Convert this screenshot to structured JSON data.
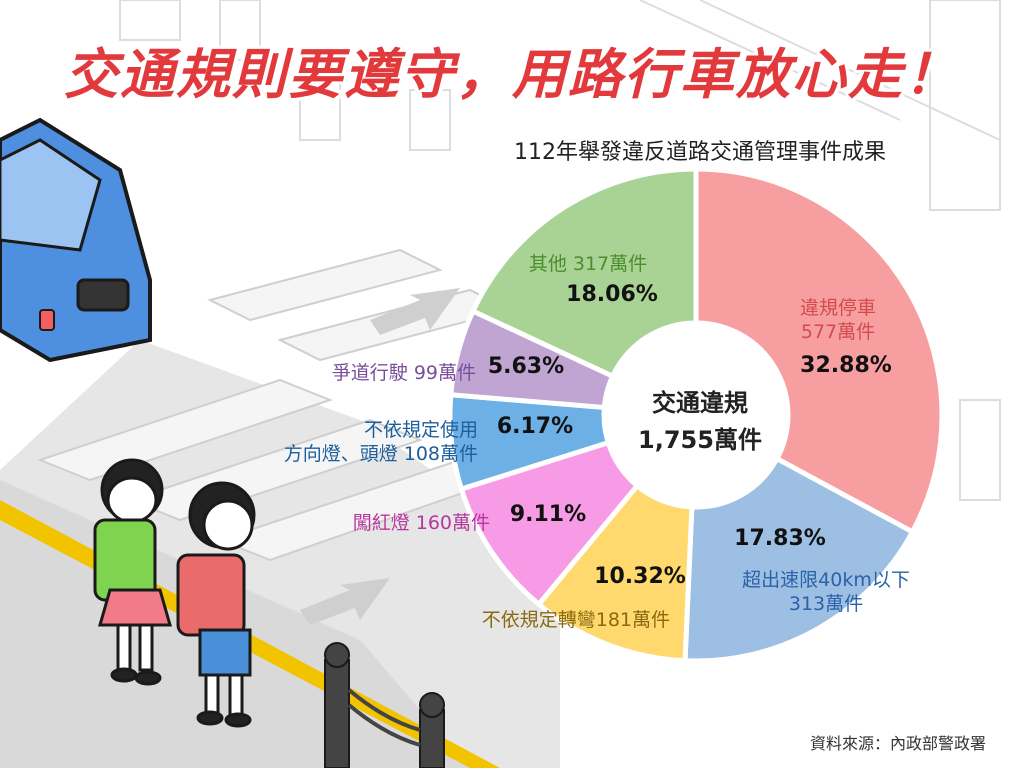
{
  "headline": "交通規則要遵守，用路行車放心走！",
  "source": "資料來源：內政部警政署",
  "colors": {
    "headline": "#e23a3c",
    "donut_hole": "#ffffff"
  },
  "chart_data": {
    "type": "pie",
    "title": "112年舉發違反道路交通管理事件成果",
    "center_label": [
      "交通違規",
      "1,755萬件"
    ],
    "slices": [
      {
        "label_lines": [
          "違規停車",
          "577萬件"
        ],
        "value": 32.88,
        "pct_label": "32.88%",
        "color": "#f79fa0",
        "label_color": "#d14b4f"
      },
      {
        "label_lines": [
          "超出速限40km以下",
          "313萬件"
        ],
        "value": 17.83,
        "pct_label": "17.83%",
        "color": "#9dbfe3",
        "label_color": "#2b62a8"
      },
      {
        "label_lines": [
          "不依規定轉彎181萬件"
        ],
        "value": 10.32,
        "pct_label": "10.32%",
        "color": "#ffd96e",
        "label_color": "#8a6a10"
      },
      {
        "label_lines": [
          "闖紅燈 160萬件"
        ],
        "value": 9.11,
        "pct_label": "9.11%",
        "color": "#f89be6",
        "label_color": "#b8379e"
      },
      {
        "label_lines": [
          "不依規定使用",
          "方向燈、頭燈 108萬件"
        ],
        "value": 6.17,
        "pct_label": "6.17%",
        "color": "#6cb0e6",
        "label_color": "#1d5e9c"
      },
      {
        "label_lines": [
          "爭道行駛 99萬件"
        ],
        "value": 5.63,
        "pct_label": "5.63%",
        "color": "#c0a5d3",
        "label_color": "#7a4e9c"
      },
      {
        "label_lines": [
          "其他 317萬件"
        ],
        "value": 18.06,
        "pct_label": "18.06%",
        "color": "#a9d394",
        "label_color": "#4d8c2f"
      }
    ]
  }
}
